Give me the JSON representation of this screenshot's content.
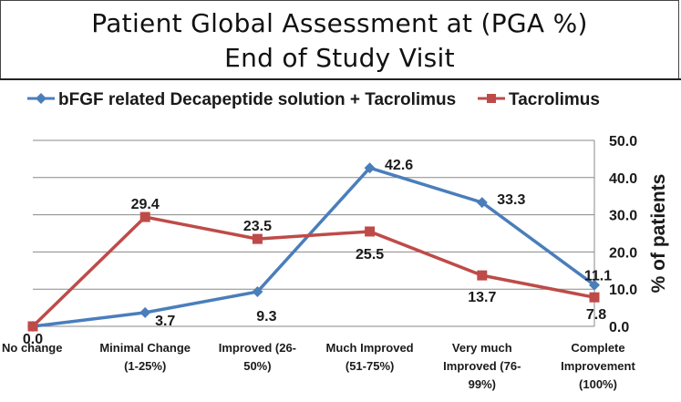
{
  "title_line1": "Patient Global Assessment at (PGA %)",
  "title_line2": "End of Study Visit",
  "chart_data": {
    "type": "line",
    "title": "Patient Global Assessment at (PGA %) End of Study Visit",
    "categories": [
      [
        "No change"
      ],
      [
        "Minimal Change",
        "(1-25%)"
      ],
      [
        "Improved (26-",
        "50%)"
      ],
      [
        "Much Improved",
        "(51-75%)"
      ],
      [
        "Very much",
        "Improved (76-",
        "99%)"
      ],
      [
        "Complete",
        "Improvement",
        "(100%)"
      ]
    ],
    "ylabel": "% of patients",
    "ylim": [
      0,
      50
    ],
    "yticks": [
      "0.0",
      "10.0",
      "20.0",
      "30.0",
      "40.0",
      "50.0"
    ],
    "y_axis_side": "right",
    "grid": true,
    "legend_position": "top",
    "series": [
      {
        "name": "bFGF related Decapeptide solution + Tacrolimus",
        "color": "#4a7ebb",
        "marker": "diamond",
        "values": [
          0.0,
          3.7,
          9.3,
          42.6,
          33.3,
          11.1
        ],
        "labels": [
          "",
          "3.7",
          "9.3",
          "42.6",
          "33.3",
          "11.1"
        ]
      },
      {
        "name": "Tacrolimus",
        "color": "#be4b48",
        "marker": "square",
        "values": [
          0.0,
          29.4,
          23.5,
          25.5,
          13.7,
          7.8
        ],
        "labels": [
          "0.0",
          "29.4",
          "23.5",
          "25.5",
          "13.7",
          "7.8"
        ]
      }
    ]
  }
}
